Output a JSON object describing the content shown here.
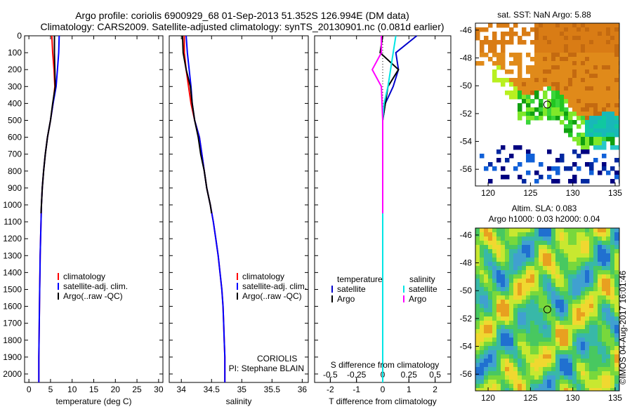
{
  "header": {
    "title_line1": "Argo profile: coriolis 6900929_68 01-Sep-2013 51.352S 126.994E (DM data)",
    "title_line2": "Climatology: CARS2009. Satellite-adjusted climatology: synTS_20130901.nc (0.081d earlier)"
  },
  "colors": {
    "climatology": "#ff0000",
    "satellite_adj": "#0000ff",
    "argo": "#000000",
    "temperature_satellite": "#0000cc",
    "salinity_satellite": "#00e5e5",
    "salinity_argo": "#ff00ff"
  },
  "chart_data": [
    {
      "type": "line",
      "id": "temperature",
      "xlabel": "temperature (deg C)",
      "ylabel": "",
      "xlim": [
        -1,
        31
      ],
      "ylim": [
        2050,
        0
      ],
      "xticks": [
        "0",
        "5",
        "10",
        "15",
        "20",
        "25",
        "30"
      ],
      "yticks": [
        "0",
        "100",
        "200",
        "300",
        "400",
        "500",
        "600",
        "700",
        "800",
        "900",
        "1000",
        "1100",
        "1200",
        "1300",
        "1400",
        "1500",
        "1600",
        "1700",
        "1800",
        "1900",
        "2000"
      ],
      "legend": [
        "climatology",
        "satellite-adj. clim.",
        "Argo(..raw -QC)"
      ],
      "series": [
        {
          "name": "climatology",
          "color": "#ff0000",
          "x": [
            5.3,
            5.5,
            5.8,
            6.0,
            5.6,
            5.0,
            4.3,
            3.8,
            3.4,
            3.1,
            2.9,
            2.8,
            2.7,
            2.6,
            2.55,
            2.5,
            2.45,
            2.4,
            2.35,
            2.3,
            2.3
          ],
          "y": [
            0,
            100,
            200,
            300,
            400,
            500,
            600,
            700,
            800,
            900,
            1000,
            1100,
            1200,
            1300,
            1400,
            1500,
            1600,
            1700,
            1800,
            1900,
            2050
          ]
        },
        {
          "name": "satellite-adj. clim.",
          "color": "#0000ff",
          "x": [
            7.0,
            6.9,
            6.6,
            6.3,
            5.6,
            5.0,
            4.3,
            3.8,
            3.4,
            3.1,
            2.9,
            2.8,
            2.7,
            2.6,
            2.55,
            2.5,
            2.45,
            2.4,
            2.35,
            2.3,
            2.3
          ],
          "y": [
            0,
            100,
            200,
            300,
            400,
            500,
            600,
            700,
            800,
            900,
            1000,
            1100,
            1200,
            1300,
            1400,
            1500,
            1600,
            1700,
            1800,
            1900,
            2050
          ]
        },
        {
          "name": "Argo(..raw -QC)",
          "color": "#000000",
          "x": [
            5.9,
            5.9,
            6.0,
            6.1,
            5.5,
            5.0,
            4.3,
            3.8,
            3.4,
            3.1,
            2.9,
            2.8
          ],
          "y": [
            0,
            100,
            200,
            300,
            400,
            500,
            600,
            700,
            800,
            900,
            1000,
            1050
          ]
        }
      ]
    },
    {
      "type": "line",
      "id": "salinity",
      "xlabel": "salinity",
      "xlim": [
        33.8,
        36.1
      ],
      "ylim": [
        2050,
        0
      ],
      "xticks": [
        "34",
        "34.5",
        "35",
        "35.5",
        "36"
      ],
      "legend": [
        "climatology",
        "satellite-adj. clim.",
        "Argo(..raw -QC)"
      ],
      "annotation": [
        "CORIOLIS",
        "PI: Stephane BLAIN"
      ],
      "series": [
        {
          "name": "climatology",
          "color": "#ff0000",
          "x": [
            34.05,
            34.05,
            34.08,
            34.12,
            34.16,
            34.22,
            34.3,
            34.34,
            34.38,
            34.42,
            34.48,
            34.53,
            34.57,
            34.61,
            34.64,
            34.67,
            34.69,
            34.7,
            34.71,
            34.72,
            34.72
          ],
          "y": [
            0,
            100,
            200,
            300,
            400,
            500,
            600,
            700,
            800,
            900,
            1000,
            1100,
            1200,
            1300,
            1400,
            1500,
            1600,
            1700,
            1800,
            1900,
            2050
          ]
        },
        {
          "name": "satellite-adj. clim.",
          "color": "#0000ff",
          "x": [
            34.08,
            34.1,
            34.13,
            34.16,
            34.18,
            34.22,
            34.3,
            34.34,
            34.38,
            34.42,
            34.48,
            34.53,
            34.57,
            34.61,
            34.64,
            34.67,
            34.69,
            34.7,
            34.71,
            34.72,
            34.72
          ],
          "y": [
            0,
            100,
            200,
            300,
            400,
            500,
            600,
            700,
            800,
            900,
            1000,
            1100,
            1200,
            1300,
            1400,
            1500,
            1600,
            1700,
            1800,
            1900,
            2050
          ]
        },
        {
          "name": "Argo(..raw -QC)",
          "color": "#000000",
          "x": [
            34.02,
            34.03,
            34.08,
            34.15,
            34.18,
            34.22,
            34.28,
            34.32,
            34.38,
            34.42,
            34.48,
            34.5
          ],
          "y": [
            0,
            100,
            200,
            300,
            400,
            500,
            600,
            700,
            800,
            900,
            1000,
            1050
          ]
        }
      ]
    },
    {
      "type": "line",
      "id": "difference",
      "xlabel": "T difference from climatology",
      "top_label": "S difference from climatology",
      "xlim": [
        -2.6,
        2.6
      ],
      "ylim": [
        2050,
        0
      ],
      "xticks": [
        "-2",
        "-1",
        "0",
        "1",
        "2"
      ],
      "s_ticks": [
        "-0.5",
        "-0.25",
        "0",
        "0.25",
        "0.5"
      ],
      "legend": {
        "temperature": "temperature",
        "salinity": "salinity",
        "satellite": "satellite",
        "argo": "Argo"
      },
      "series": [
        {
          "name": "temperature satellite",
          "color": "#0000cc",
          "x": [
            1.3,
            0.5,
            0.6,
            0.4,
            0.1,
            0.0,
            0.0,
            0.0,
            0.0,
            0.0,
            0.0
          ],
          "y": [
            0,
            100,
            200,
            300,
            400,
            500,
            700,
            1000,
            1400,
            1800,
            2050
          ]
        },
        {
          "name": "temperature Argo",
          "color": "#000000",
          "x": [
            0.0,
            -0.1,
            0.6,
            0.2,
            0.1,
            0.0,
            0.0,
            0.0
          ],
          "y": [
            0,
            100,
            200,
            300,
            400,
            500,
            800,
            1050
          ]
        },
        {
          "name": "salinity satellite",
          "color": "#00e5e5",
          "x": [
            0.5,
            0.4,
            0.3,
            0.2,
            0.05,
            0.0,
            0.0,
            0.0,
            0.0
          ],
          "y": [
            0,
            100,
            200,
            300,
            400,
            500,
            1000,
            1500,
            2050
          ]
        },
        {
          "name": "salinity Argo",
          "color": "#ff00ff",
          "x": [
            -0.05,
            -0.05,
            -0.4,
            -0.05,
            0.0,
            0.0,
            0.0
          ],
          "y": [
            0,
            100,
            200,
            300,
            500,
            800,
            1050
          ]
        }
      ]
    },
    {
      "type": "heatmap",
      "id": "sst_map",
      "title": "sat. SST: NaN Argo: 5.88",
      "xticks": [
        "120",
        "125",
        "130",
        "135"
      ],
      "yticks": [
        "-46",
        "-48",
        "-50",
        "-52",
        "-54",
        "-56"
      ],
      "xlim": [
        118.5,
        135.5
      ],
      "ylim": [
        -57.2,
        -45.5
      ],
      "marker": {
        "lon": 126.994,
        "lat": -51.352
      }
    },
    {
      "type": "heatmap",
      "id": "sla_map",
      "title_line1": "Altim. SLA: 0.083",
      "title_line2": "Argo h1000: 0.03 h2000: 0.04",
      "xticks": [
        "120",
        "125",
        "130",
        "135"
      ],
      "yticks": [
        "-46",
        "-48",
        "-50",
        "-52",
        "-54",
        "-56"
      ],
      "xlim": [
        118.5,
        135.5
      ],
      "ylim": [
        -57.2,
        -45.5
      ],
      "marker": {
        "lon": 126.994,
        "lat": -51.352
      }
    }
  ],
  "footer": {
    "credit": "©IMOS 04-Aug-2017 16:01:46"
  }
}
